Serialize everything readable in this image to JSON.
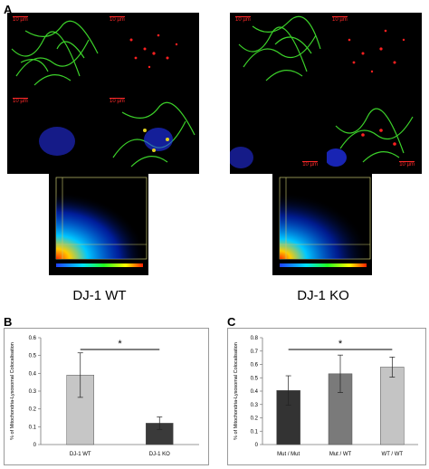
{
  "panels": {
    "A": {
      "letter": "A"
    },
    "B": {
      "letter": "B"
    },
    "C": {
      "letter": "C"
    }
  },
  "micrographs": {
    "scale_label": "10 µm",
    "colors": {
      "mito": "#3cd22a",
      "lyso": "#ff2020",
      "nucleus": "#2233ff",
      "merge": "#c8c820"
    }
  },
  "groups": {
    "wt_label": "DJ-1 WT",
    "ko_label": "DJ-1 KO"
  },
  "chart_data": [
    {
      "type": "bar",
      "panel": "B",
      "categories": [
        "DJ-1 WT",
        "DJ-1 KO"
      ],
      "values": [
        0.39,
        0.12
      ],
      "errors": [
        0.125,
        0.035
      ],
      "ylabel": "% of Mitochondria-Lysosomal Colocalisation",
      "ylim": [
        0,
        0.6
      ],
      "yticks": [
        "0",
        "0.1",
        "0.2",
        "0.3",
        "0.4",
        "0.5",
        "0.6"
      ],
      "significance": "*",
      "colors": [
        "#c6c6c6",
        "#3a3a3a"
      ]
    },
    {
      "type": "bar",
      "panel": "C",
      "categories": [
        "Mut / Mut",
        "Mut / WT",
        "WT / WT"
      ],
      "values": [
        0.405,
        0.53,
        0.58
      ],
      "errors": [
        0.11,
        0.14,
        0.075
      ],
      "ylabel": "% of Mitochondria-Lysosomal Colocalisation",
      "ylim": [
        0,
        0.8
      ],
      "yticks": [
        "0",
        "0.1",
        "0.2",
        "0.3",
        "0.4",
        "0.5",
        "0.6",
        "0.7",
        "0.8"
      ],
      "significance": "*",
      "colors": [
        "#333333",
        "#7a7a7a",
        "#c4c4c4"
      ]
    }
  ]
}
